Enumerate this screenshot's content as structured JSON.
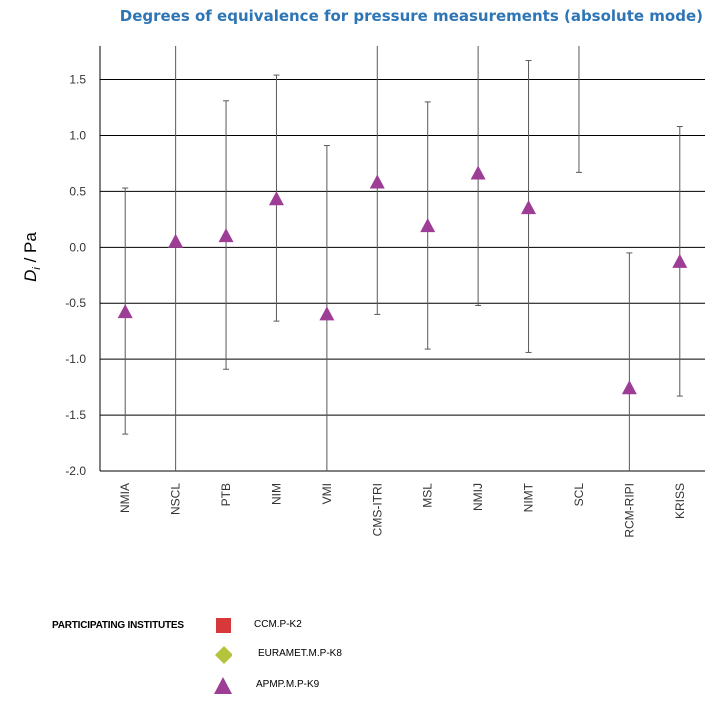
{
  "chart_data": {
    "type": "scatter",
    "title": "Degrees of equivalence for pressure measurements (absolute mode)",
    "ylabel_italic": "D",
    "ylabel_subscript": "i",
    "ylabel_rest": " / Pa",
    "ylim": [
      -2.0,
      1.8
    ],
    "yticks": [
      "1.5",
      "1.0",
      "0.5",
      "0.0",
      "-0.5",
      "-1.0",
      "-1.5",
      "-2.0"
    ],
    "ytick_values": [
      1.5,
      1.0,
      0.5,
      0.0,
      -0.5,
      -1.0,
      -1.5,
      -2.0
    ],
    "grid": true,
    "categories": [
      "NMIA",
      "NSCL",
      "PTB",
      "NIM",
      "VMI",
      "CMS-ITRI",
      "MSL",
      "NMIJ",
      "NIMT",
      "SCL",
      "RCM-RIPI",
      "KRISS"
    ],
    "series": [
      {
        "name": "APMP.M.P-K9",
        "color": "#9e3d96",
        "marker": "triangle",
        "values": [
          -0.58,
          0.05,
          0.1,
          0.43,
          -0.6,
          0.58,
          0.19,
          0.66,
          0.35,
          null,
          -1.26,
          -0.13
        ],
        "error_upper": [
          0.53,
          1.8,
          1.31,
          1.54,
          0.91,
          1.8,
          1.3,
          1.8,
          1.67,
          1.8,
          -0.05,
          1.08
        ],
        "error_lower": [
          -1.67,
          -2.0,
          -1.09,
          -0.66,
          -2.0,
          -0.6,
          -0.91,
          -0.52,
          -0.94,
          0.67,
          -2.0,
          -1.33
        ]
      }
    ],
    "legend": {
      "title": "PARTICIPATING INSTITUTES",
      "placement": "bottom-left",
      "entries": [
        {
          "label": "CCM.P-K2",
          "marker": "square",
          "color": "#d9383a"
        },
        {
          "label": "EURAMET.M.P-K8",
          "marker": "diamond",
          "color": "#b5c23c"
        },
        {
          "label": "APMP.M.P-K9",
          "marker": "triangle",
          "color": "#9e3d96"
        }
      ]
    }
  }
}
